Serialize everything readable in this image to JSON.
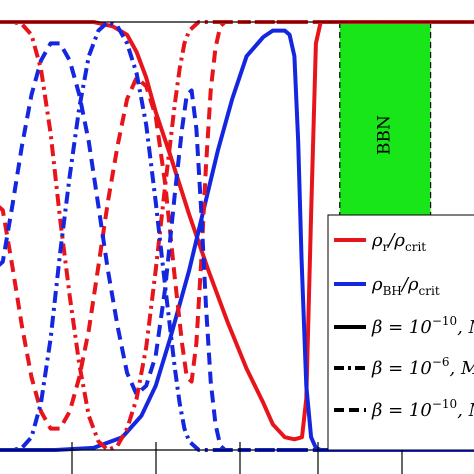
{
  "chart_data": {
    "type": "line",
    "xlim": [
      0,
      1
    ],
    "ylim": [
      0,
      1
    ],
    "grid": false,
    "legend_placement": "right",
    "colors": {
      "radiation": "#e8141c",
      "black_holes": "#1426e0",
      "bbn_band": "#19e619",
      "axis": "#000000"
    },
    "band": {
      "label": "BBN",
      "x_range": [
        0.715,
        0.905
      ]
    },
    "series": [
      {
        "name": "radiation-solid",
        "color": "#e8141c",
        "style": "solid",
        "x": [
          0,
          0.2,
          0.24,
          0.27,
          0.29,
          0.31,
          0.33,
          0.36,
          0.4,
          0.44,
          0.48,
          0.52,
          0.555,
          0.575,
          0.6,
          0.62,
          0.636,
          0.645,
          0.655,
          0.665,
          0.675,
          0.69,
          1.0
        ],
        "y": [
          1.0,
          1.0,
          0.99,
          0.97,
          0.93,
          0.87,
          0.79,
          0.69,
          0.55,
          0.42,
          0.3,
          0.19,
          0.11,
          0.06,
          0.03,
          0.025,
          0.03,
          0.12,
          0.55,
          0.95,
          1.0,
          1.0,
          1.0
        ]
      },
      {
        "name": "black-holes-solid",
        "color": "#1426e0",
        "style": "solid",
        "x": [
          0,
          0.12,
          0.2,
          0.26,
          0.3,
          0.33,
          0.36,
          0.4,
          0.43,
          0.46,
          0.49,
          0.52,
          0.555,
          0.575,
          0.6,
          0.61,
          0.62,
          0.628,
          0.635,
          0.645,
          0.655,
          0.665,
          0.675,
          1.0
        ],
        "y": [
          0.0,
          0.0,
          0.005,
          0.03,
          0.08,
          0.15,
          0.26,
          0.42,
          0.56,
          0.7,
          0.82,
          0.92,
          0.965,
          0.98,
          0.98,
          0.97,
          0.92,
          0.72,
          0.45,
          0.15,
          0.03,
          0.005,
          0.0,
          0.0
        ]
      },
      {
        "name": "radiation-dashed",
        "color": "#e8141c",
        "style": "dashed",
        "x": [
          0,
          0.01,
          0.03,
          0.05,
          0.07,
          0.09,
          0.11,
          0.13,
          0.15,
          0.17,
          0.19,
          0.21,
          0.23,
          0.25,
          0.27,
          0.29,
          0.31,
          0.33,
          0.35,
          0.37,
          0.385,
          0.395,
          0.405,
          0.415,
          0.425,
          0.435,
          0.445,
          0.455,
          0.465,
          0.475,
          0.485,
          0.5,
          1.0
        ],
        "y": [
          0.57,
          0.56,
          0.43,
          0.29,
          0.17,
          0.09,
          0.05,
          0.05,
          0.09,
          0.17,
          0.28,
          0.43,
          0.58,
          0.71,
          0.82,
          0.87,
          0.85,
          0.78,
          0.62,
          0.4,
          0.25,
          0.17,
          0.16,
          0.25,
          0.44,
          0.66,
          0.84,
          0.94,
          0.99,
          1.0,
          1.0,
          1.0,
          1.0
        ]
      },
      {
        "name": "black-holes-dashed",
        "color": "#1426e0",
        "style": "dashed",
        "x": [
          0,
          0.01,
          0.03,
          0.05,
          0.07,
          0.09,
          0.11,
          0.13,
          0.15,
          0.17,
          0.19,
          0.21,
          0.23,
          0.25,
          0.27,
          0.29,
          0.31,
          0.33,
          0.35,
          0.37,
          0.385,
          0.395,
          0.405,
          0.415,
          0.425,
          0.435,
          0.445,
          0.455,
          0.465,
          0.475,
          0.485,
          0.5,
          1.0
        ],
        "y": [
          0.43,
          0.44,
          0.57,
          0.71,
          0.83,
          0.91,
          0.95,
          0.95,
          0.91,
          0.83,
          0.72,
          0.57,
          0.42,
          0.29,
          0.18,
          0.13,
          0.15,
          0.22,
          0.38,
          0.6,
          0.75,
          0.83,
          0.84,
          0.75,
          0.56,
          0.34,
          0.16,
          0.06,
          0.01,
          0.0,
          0.0,
          0.0,
          0.0
        ]
      },
      {
        "name": "radiation-dashdot",
        "color": "#e8141c",
        "style": "dashdot",
        "x": [
          0,
          0.03,
          0.05,
          0.07,
          0.09,
          0.11,
          0.13,
          0.15,
          0.17,
          0.19,
          0.21,
          0.23,
          0.25,
          0.27,
          0.29,
          0.31,
          0.33,
          0.35,
          0.37,
          0.38,
          0.39,
          0.4,
          0.41,
          0.42,
          0.435,
          0.45,
          1.0
        ],
        "y": [
          1.0,
          1.0,
          0.995,
          0.97,
          0.89,
          0.74,
          0.54,
          0.36,
          0.2,
          0.08,
          0.02,
          0.0,
          0.01,
          0.05,
          0.12,
          0.24,
          0.42,
          0.62,
          0.81,
          0.89,
          0.95,
          0.98,
          0.99,
          1.0,
          1.0,
          1.0,
          1.0
        ]
      },
      {
        "name": "black-holes-dashdot",
        "color": "#1426e0",
        "style": "dashdot",
        "x": [
          0,
          0.03,
          0.05,
          0.07,
          0.09,
          0.11,
          0.13,
          0.15,
          0.17,
          0.19,
          0.21,
          0.23,
          0.25,
          0.27,
          0.29,
          0.31,
          0.33,
          0.35,
          0.37,
          0.38,
          0.39,
          0.4,
          0.41,
          0.42,
          0.435,
          0.45,
          1.0
        ],
        "y": [
          0.0,
          0.0,
          0.005,
          0.03,
          0.11,
          0.26,
          0.46,
          0.64,
          0.8,
          0.92,
          0.98,
          1.0,
          0.99,
          0.95,
          0.88,
          0.76,
          0.58,
          0.38,
          0.19,
          0.11,
          0.05,
          0.02,
          0.01,
          0.0,
          0.0,
          0.0,
          0.0
        ]
      }
    ],
    "legend": {
      "entries": [
        {
          "color": "#e8141c",
          "style": "solid",
          "main": "ρ",
          "sub": "r",
          "rest": "/ρ",
          "sub2": "crit"
        },
        {
          "color": "#1426e0",
          "style": "solid",
          "main": "ρ",
          "sub": "BH",
          "rest": "/ρ",
          "sub2": "crit"
        },
        {
          "color": "#000000",
          "style": "solid",
          "main": "β",
          "sub": "",
          "rest": " = 10",
          "sup": "−10",
          "tail": ", M"
        },
        {
          "color": "#000000",
          "style": "dashdot",
          "main": "β",
          "sub": "",
          "rest": " = 10",
          "sup": "−6",
          "tail": ",  M"
        },
        {
          "color": "#000000",
          "style": "dashed",
          "main": "β",
          "sub": "",
          "rest": " = 10",
          "sup": "−10",
          "tail": ", M"
        }
      ]
    }
  }
}
